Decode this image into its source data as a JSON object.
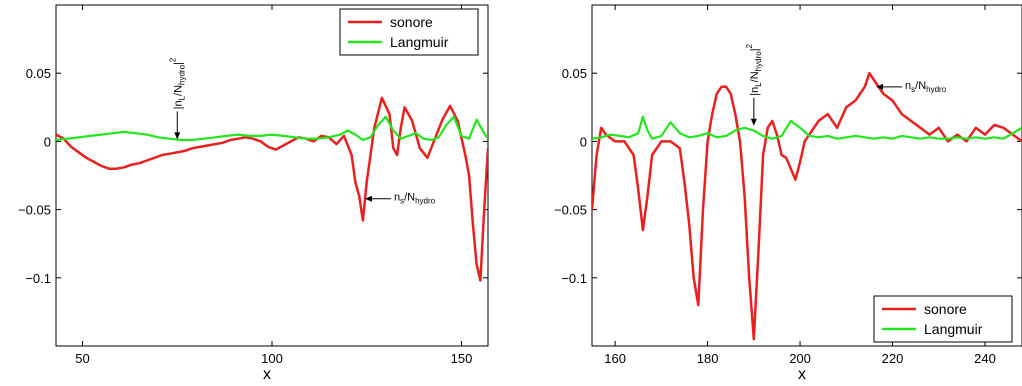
{
  "chart_data": [
    {
      "type": "line",
      "xlabel": "x",
      "ylabel": "",
      "xlim": [
        43,
        157
      ],
      "ylim": [
        -0.15,
        0.1
      ],
      "xticks": [
        50,
        100,
        150
      ],
      "yticks": [
        0.05,
        0,
        -0.05,
        -0.1
      ],
      "ytick_labels": [
        "0.05",
        "0",
        "−0.05",
        "−0.1"
      ],
      "legend": {
        "position": "top-right",
        "entries": [
          "sonore",
          "Langmuir"
        ]
      },
      "series": [
        {
          "name": "sonore",
          "color": "#e8211e",
          "x": [
            43,
            45,
            47,
            49,
            51,
            53,
            55,
            57,
            59,
            61,
            63,
            65,
            67,
            69,
            71,
            73,
            75,
            77,
            79,
            81,
            83,
            85,
            87,
            89,
            91,
            93,
            95,
            97,
            99,
            101,
            103,
            105,
            107,
            109,
            111,
            113,
            115,
            117,
            119,
            121,
            122,
            123,
            124,
            125,
            126,
            127,
            129,
            131,
            132,
            133,
            134,
            135,
            137,
            139,
            141,
            143,
            145,
            147,
            149,
            151,
            152,
            153,
            154,
            155,
            156,
            157
          ],
          "y": [
            0.005,
            0.002,
            -0.004,
            -0.008,
            -0.012,
            -0.015,
            -0.018,
            -0.02,
            -0.02,
            -0.019,
            -0.017,
            -0.016,
            -0.014,
            -0.012,
            -0.01,
            -0.009,
            -0.008,
            -0.007,
            -0.005,
            -0.004,
            -0.003,
            -0.002,
            -0.001,
            0.001,
            0.002,
            0.003,
            0.002,
            0.0,
            -0.004,
            -0.006,
            -0.003,
            0.0,
            0.003,
            0.002,
            0.0,
            0.004,
            0.003,
            -0.002,
            0.004,
            -0.01,
            -0.03,
            -0.04,
            -0.058,
            -0.03,
            -0.01,
            0.01,
            0.032,
            0.02,
            -0.005,
            -0.01,
            0.01,
            0.025,
            0.015,
            -0.005,
            -0.012,
            0.002,
            0.016,
            0.026,
            0.015,
            -0.01,
            -0.025,
            -0.06,
            -0.09,
            -0.102,
            -0.05,
            -0.005
          ]
        },
        {
          "name": "Langmuir",
          "color": "#22e61e",
          "x": [
            43,
            46,
            49,
            52,
            55,
            58,
            61,
            64,
            67,
            70,
            73,
            76,
            79,
            82,
            85,
            88,
            91,
            94,
            97,
            100,
            103,
            106,
            109,
            112,
            115,
            118,
            120,
            122,
            124,
            126,
            128,
            130,
            132,
            134,
            136,
            138,
            140,
            142,
            144,
            146,
            148,
            150,
            152,
            154,
            156,
            157
          ],
          "y": [
            0.001,
            0.002,
            0.003,
            0.004,
            0.005,
            0.006,
            0.007,
            0.006,
            0.005,
            0.003,
            0.002,
            0.001,
            0.001,
            0.002,
            0.003,
            0.004,
            0.005,
            0.004,
            0.004,
            0.005,
            0.004,
            0.003,
            0.002,
            0.002,
            0.003,
            0.005,
            0.008,
            0.005,
            0.001,
            0.003,
            0.012,
            0.018,
            0.008,
            0.002,
            0.004,
            0.006,
            0.002,
            0.001,
            0.003,
            0.012,
            0.018,
            0.004,
            0.002,
            0.016,
            0.006,
            0.002
          ]
        }
      ],
      "annotations": [
        {
          "base": "|n",
          "sub": "L",
          "mid": "/N",
          "sub2": "hydro",
          "sup": "2",
          "tail": "|",
          "x": 75,
          "y": 0.0,
          "orientation": "vertical"
        },
        {
          "base": "n",
          "sub": "s",
          "mid": "/N",
          "sub2": "hydro",
          "x": 124,
          "y": -0.042,
          "orientation": "horizontal"
        }
      ]
    },
    {
      "type": "line",
      "xlabel": "x",
      "ylabel": "",
      "xlim": [
        155,
        248
      ],
      "ylim": [
        -0.15,
        0.1
      ],
      "xticks": [
        160,
        180,
        200,
        220,
        240
      ],
      "yticks": [
        0.05,
        0,
        -0.05,
        -0.1
      ],
      "ytick_labels": [
        "0.05",
        "0",
        "−0.05",
        "−0.1"
      ],
      "legend": {
        "position": "bottom-right",
        "entries": [
          "sonore",
          "Langmuir"
        ]
      },
      "series": [
        {
          "name": "sonore",
          "color": "#e8211e",
          "x": [
            155,
            156,
            157,
            158,
            160,
            162,
            164,
            165,
            166,
            167,
            168,
            170,
            172,
            174,
            175,
            176,
            177,
            178,
            179,
            180,
            181,
            182,
            183,
            184,
            185,
            186,
            187,
            188,
            189,
            190,
            191,
            192,
            193,
            194,
            195,
            196,
            197,
            198,
            199,
            200,
            201,
            202,
            204,
            206,
            208,
            210,
            212,
            214,
            215,
            216,
            218,
            220,
            222,
            224,
            226,
            228,
            230,
            232,
            234,
            236,
            238,
            240,
            242,
            244,
            246,
            248
          ],
          "y": [
            -0.05,
            -0.01,
            0.01,
            0.005,
            0.0,
            0.0,
            -0.01,
            -0.035,
            -0.065,
            -0.04,
            -0.01,
            0.0,
            0.0,
            -0.005,
            -0.03,
            -0.06,
            -0.1,
            -0.12,
            -0.05,
            0.0,
            0.02,
            0.035,
            0.04,
            0.04,
            0.035,
            0.02,
            0.0,
            -0.04,
            -0.1,
            -0.145,
            -0.08,
            -0.01,
            0.01,
            0.015,
            0.005,
            -0.01,
            -0.012,
            -0.02,
            -0.028,
            -0.015,
            0.0,
            0.005,
            0.015,
            0.02,
            0.01,
            0.025,
            0.03,
            0.04,
            0.05,
            0.045,
            0.035,
            0.03,
            0.02,
            0.015,
            0.01,
            0.005,
            0.01,
            0.0,
            0.005,
            0.0,
            0.01,
            0.005,
            0.012,
            0.01,
            0.005,
            0.0
          ]
        },
        {
          "name": "Langmuir",
          "color": "#22e61e",
          "x": [
            155,
            157,
            159,
            161,
            163,
            165,
            166,
            167,
            168,
            170,
            172,
            174,
            176,
            178,
            180,
            182,
            184,
            186,
            188,
            190,
            192,
            194,
            196,
            198,
            200,
            202,
            204,
            206,
            208,
            210,
            212,
            214,
            216,
            218,
            220,
            222,
            224,
            226,
            228,
            230,
            232,
            234,
            236,
            238,
            240,
            242,
            244,
            246,
            248
          ],
          "y": [
            0.002,
            0.003,
            0.005,
            0.004,
            0.003,
            0.006,
            0.018,
            0.008,
            0.002,
            0.004,
            0.014,
            0.006,
            0.003,
            0.004,
            0.006,
            0.003,
            0.004,
            0.008,
            0.01,
            0.008,
            0.004,
            0.002,
            0.004,
            0.015,
            0.01,
            0.004,
            0.003,
            0.004,
            0.002,
            0.003,
            0.004,
            0.003,
            0.002,
            0.003,
            0.002,
            0.004,
            0.003,
            0.002,
            0.003,
            0.002,
            0.002,
            0.003,
            0.002,
            0.003,
            0.002,
            0.003,
            0.002,
            0.006,
            0.01
          ]
        }
      ],
      "annotations": [
        {
          "base": "|n",
          "sub": "L",
          "mid": "/N",
          "sub2": "hydro",
          "sup": "2",
          "tail": "|",
          "x": 190,
          "y": 0.01,
          "orientation": "vertical"
        },
        {
          "base": "n",
          "sub": "s",
          "mid": "/N",
          "sub2": "hydro",
          "x": 216,
          "y": 0.04,
          "orientation": "horizontal"
        }
      ]
    }
  ]
}
